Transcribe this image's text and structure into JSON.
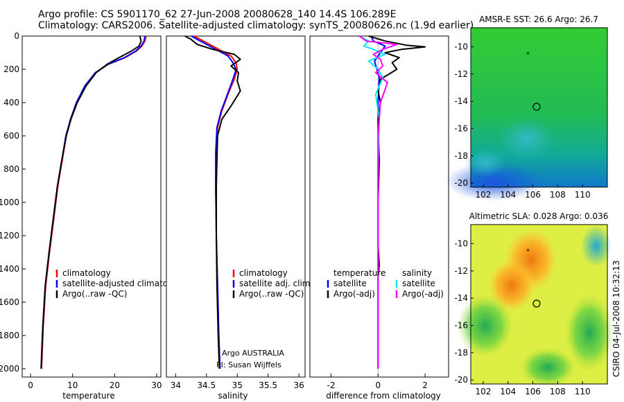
{
  "header": {
    "line1": "Argo profile: CS 5901170_62 27-Jun-2008 20080628_140 14.4S 106.289E",
    "line2": "Climatology: CARS2006. Satellite-adjusted climatology: synTS_20080626.nc (1.9d earlier)"
  },
  "footer_stamp": "CSIRO 04-Jul-2008 10:32:13",
  "colors": {
    "red": "#ff0000",
    "blue": "#0000ff",
    "black": "#000000",
    "cyan": "#00e5ff",
    "magenta": "#ff00ff"
  },
  "chart_data": [
    {
      "type": "line",
      "xlabel": "temperature",
      "ylabel": "",
      "xlim": [
        -2,
        31
      ],
      "ylim": [
        2050,
        0
      ],
      "xticks": [
        0,
        10,
        20,
        30
      ],
      "yticks": [
        0,
        200,
        400,
        600,
        800,
        1000,
        1200,
        1400,
        1600,
        1800,
        2000
      ],
      "legend": {
        "placement": "lower-right",
        "entries": [
          {
            "label": "climatology",
            "color": "red"
          },
          {
            "label": "satellite-adjusted climatology",
            "color": "blue"
          },
          {
            "label": "Argo(..raw -QC)",
            "color": "black"
          }
        ]
      },
      "series": [
        {
          "name": "climatology",
          "color": "red",
          "x": [
            27.5,
            27.2,
            26.5,
            25.2,
            22.5,
            18.5,
            15.5,
            13.0,
            11.0,
            9.6,
            8.5,
            7.5,
            6.5,
            5.5,
            4.5,
            3.6,
            3.0,
            2.6
          ],
          "y": [
            0,
            30,
            60,
            90,
            130,
            170,
            220,
            300,
            400,
            500,
            600,
            750,
            900,
            1100,
            1300,
            1500,
            1750,
            2000
          ]
        },
        {
          "name": "satellite-adjusted climatology",
          "color": "blue",
          "x": [
            27.2,
            27.0,
            26.3,
            25.0,
            22.3,
            18.4,
            15.4,
            12.9,
            10.9,
            9.5,
            8.4,
            7.4,
            6.4,
            5.4,
            4.4,
            3.5,
            2.9,
            2.5
          ],
          "y": [
            0,
            30,
            60,
            90,
            130,
            170,
            220,
            300,
            400,
            500,
            600,
            750,
            900,
            1100,
            1300,
            1500,
            1750,
            2000
          ]
        },
        {
          "name": "Argo(..raw -QC)",
          "color": "black",
          "x": [
            26.0,
            26.3,
            25.8,
            24.0,
            21.0,
            18.2,
            15.6,
            13.2,
            11.1,
            9.6,
            8.5,
            7.4,
            6.4,
            5.4,
            4.4,
            3.5,
            2.9,
            2.5
          ],
          "y": [
            0,
            30,
            60,
            90,
            130,
            170,
            220,
            300,
            400,
            500,
            600,
            750,
            900,
            1100,
            1300,
            1500,
            1750,
            2000
          ]
        }
      ]
    },
    {
      "type": "line",
      "xlabel": "salinity",
      "xlim": [
        33.85,
        36.1
      ],
      "ylim": [
        2050,
        0
      ],
      "xticks": [
        34,
        34.5,
        35,
        35.5,
        36
      ],
      "yticks": [],
      "legend": {
        "placement": "lower-right",
        "entries": [
          {
            "label": "climatology",
            "color": "red"
          },
          {
            "label": "satellite adj. clim.",
            "color": "blue"
          },
          {
            "label": "Argo(..raw -QC)",
            "color": "black"
          }
        ]
      },
      "annotation": [
        "Argo AUSTRALIA",
        "PI: Susan Wijffels"
      ],
      "series": [
        {
          "name": "climatology",
          "color": "red",
          "x": [
            34.3,
            34.45,
            34.6,
            34.75,
            34.9,
            34.98,
            35.0,
            34.95,
            34.85,
            34.75,
            34.68,
            34.66,
            34.65,
            34.66,
            34.68,
            34.7,
            34.72
          ],
          "y": [
            0,
            30,
            60,
            90,
            120,
            160,
            200,
            260,
            350,
            450,
            550,
            700,
            900,
            1200,
            1500,
            1800,
            2000
          ]
        },
        {
          "name": "satellite adj. clim.",
          "color": "blue",
          "x": [
            34.25,
            34.4,
            34.55,
            34.7,
            34.85,
            34.93,
            34.98,
            34.93,
            34.84,
            34.74,
            34.67,
            34.65,
            34.65,
            34.66,
            34.68,
            34.7,
            34.72
          ],
          "y": [
            0,
            30,
            60,
            90,
            120,
            160,
            200,
            260,
            350,
            450,
            550,
            700,
            900,
            1200,
            1500,
            1800,
            2000
          ]
        },
        {
          "name": "Argo(..raw -QC)",
          "color": "black",
          "x": [
            34.15,
            34.25,
            34.35,
            34.6,
            34.95,
            35.05,
            34.9,
            35.02,
            35.0,
            35.05,
            34.9,
            34.75,
            34.68,
            34.66,
            34.66,
            34.67,
            34.69,
            34.71
          ],
          "y": [
            0,
            20,
            50,
            80,
            110,
            140,
            180,
            220,
            270,
            330,
            420,
            500,
            600,
            900,
            1200,
            1500,
            1800,
            2000
          ]
        }
      ]
    },
    {
      "type": "line",
      "xlabel": "difference from climatology",
      "xlim": [
        -2.9,
        3.0
      ],
      "ylim": [
        2050,
        0
      ],
      "xticks": [
        -2,
        0,
        2
      ],
      "yticks": [],
      "legend": {
        "placement": "lower-center",
        "entries": [
          {
            "label": "temperature",
            "color": ""
          },
          {
            "label": "satellite",
            "color": "blue"
          },
          {
            "label": "Argo(-adj)",
            "color": "black"
          },
          {
            "label": "salinity",
            "color": ""
          },
          {
            "label": "satellite",
            "color": "cyan"
          },
          {
            "label": "Argo(-adj)",
            "color": "magenta"
          }
        ]
      },
      "series": [
        {
          "name": "temperature satellite",
          "color": "blue",
          "x": [
            -0.3,
            -0.2,
            0.3,
            0.1,
            -0.15,
            0.05,
            0.0,
            0.0,
            0.0,
            0.0
          ],
          "y": [
            0,
            30,
            60,
            100,
            150,
            250,
            400,
            800,
            1400,
            2000
          ]
        },
        {
          "name": "temperature Argo(-adj)",
          "color": "black",
          "x": [
            -0.4,
            0.3,
            1.2,
            2.0,
            1.0,
            0.3,
            0.9,
            0.6,
            0.8,
            0.1,
            0.0,
            0.1,
            0.0,
            0.05,
            0.0,
            0.0,
            0.05,
            0.0,
            0.0,
            0.0
          ],
          "y": [
            0,
            30,
            55,
            65,
            80,
            100,
            130,
            160,
            200,
            260,
            330,
            400,
            500,
            750,
            1000,
            1250,
            1380,
            1450,
            1700,
            2000
          ]
        },
        {
          "name": "salinity satellite",
          "color": "cyan",
          "x": [
            -0.8,
            -0.4,
            -0.6,
            -0.2,
            0.3,
            -0.4,
            0.0,
            0.2,
            -0.1,
            0.05,
            0.0,
            0.0
          ],
          "y": [
            0,
            30,
            60,
            80,
            110,
            150,
            200,
            250,
            350,
            500,
            800,
            2000
          ]
        },
        {
          "name": "salinity Argo(-adj)",
          "color": "magenta",
          "x": [
            -0.8,
            -0.5,
            0.8,
            0.2,
            -0.2,
            0.1,
            0.2,
            -0.1,
            0.4,
            0.1,
            0.0,
            0.0
          ],
          "y": [
            0,
            30,
            50,
            80,
            110,
            140,
            180,
            220,
            280,
            400,
            600,
            2000
          ]
        }
      ]
    },
    {
      "type": "heatmap",
      "title": "AMSR-E SST: 26.6 Argo: 26.7",
      "xlim": [
        101,
        112
      ],
      "ylim": [
        -20.3,
        -8.6
      ],
      "xticks": [
        102,
        104,
        106,
        108,
        110
      ],
      "yticks": [
        -10,
        -12,
        -14,
        -16,
        -18,
        -20
      ],
      "markers": [
        {
          "kind": "star",
          "x": 105.6,
          "y": -10.5
        },
        {
          "kind": "circle",
          "x": 106.3,
          "y": -14.4
        }
      ]
    },
    {
      "type": "heatmap",
      "title": "Altimetric SLA: 0.028 Argo: 0.036",
      "xlim": [
        101,
        112
      ],
      "ylim": [
        -20.3,
        -8.6
      ],
      "xticks": [
        102,
        104,
        106,
        108,
        110
      ],
      "yticks": [
        -10,
        -12,
        -14,
        -16,
        -18,
        -20
      ],
      "markers": [
        {
          "kind": "star",
          "x": 105.6,
          "y": -10.5
        },
        {
          "kind": "circle",
          "x": 106.3,
          "y": -14.4
        }
      ]
    }
  ]
}
